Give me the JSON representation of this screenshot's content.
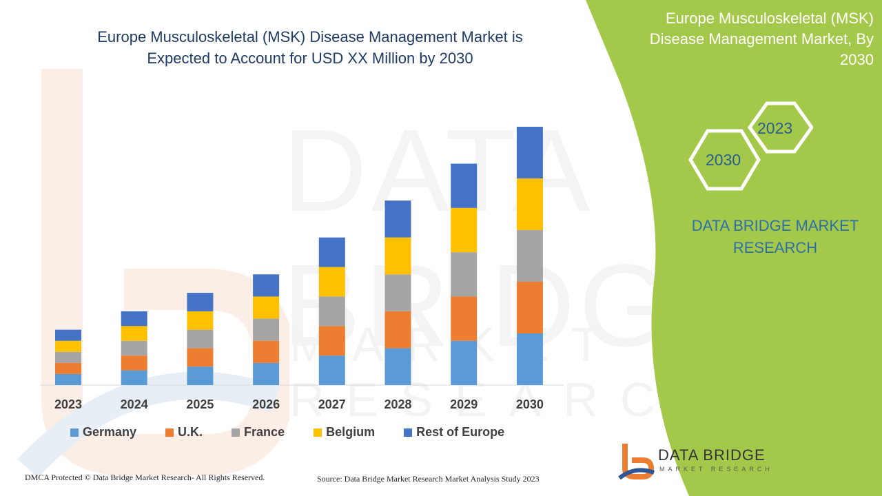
{
  "header": {
    "title_line1": "Europe Musculoskeletal (MSK) Disease Management Market  is",
    "title_line2": "Expected to Account for USD XX Million by 2030"
  },
  "side_panel": {
    "title_line1": "Europe Musculoskeletal (MSK)",
    "title_line2": "Disease Management Market, By",
    "title_line3": "2030",
    "hex_top": "2023",
    "hex_bottom": "2030",
    "brand_line1": "DATA BRIDGE MARKET",
    "brand_line2": "RESEARCH",
    "accent_color": "#a4c94a"
  },
  "watermark": {
    "line1": "DATA BRIDGE",
    "line2": "MARKET RESEARCH"
  },
  "footer": {
    "left": "DMCA Protected © Data Bridge Market Research- All Rights Reserved.",
    "right": "Source: Data Bridge Market Research Market Analysis Study 2023"
  },
  "logo": {
    "name": "DATA BRIDGE",
    "tagline": "MARKET RESEARCH"
  },
  "chart_data": {
    "type": "bar",
    "stacked": true,
    "categories": [
      "2023",
      "2024",
      "2025",
      "2026",
      "2027",
      "2028",
      "2029",
      "2030"
    ],
    "series": [
      {
        "name": "Germany",
        "color": "#5b9bd5",
        "values": [
          15,
          20,
          25,
          30,
          40,
          50,
          60,
          70
        ]
      },
      {
        "name": "U.K.",
        "color": "#ed7d31",
        "values": [
          15,
          20,
          25,
          30,
          40,
          50,
          60,
          70
        ]
      },
      {
        "name": "France",
        "color": "#a5a5a5",
        "values": [
          15,
          20,
          25,
          30,
          40,
          50,
          60,
          70
        ]
      },
      {
        "name": "Belgium",
        "color": "#ffc000",
        "values": [
          15,
          20,
          25,
          30,
          40,
          50,
          60,
          70
        ]
      },
      {
        "name": "Rest of Europe",
        "color": "#4472c4",
        "values": [
          15,
          20,
          25,
          30,
          40,
          50,
          60,
          70
        ]
      }
    ],
    "ylim": [
      0,
      350
    ],
    "grid": false,
    "legend_position": "bottom"
  }
}
